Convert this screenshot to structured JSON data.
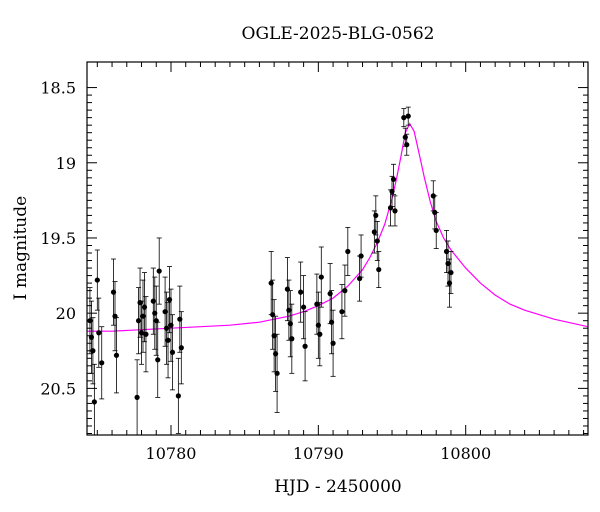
{
  "chart_data": {
    "type": "scatter",
    "title": "OGLE-2025-BLG-0562",
    "xlabel": "HJD - 2450000",
    "ylabel": "I magnitude",
    "xlim": [
      10774.3,
      10808.3
    ],
    "ylim": [
      20.81,
      18.33
    ],
    "y_inverted": true,
    "xticks": [
      "10780",
      "10790",
      "10800"
    ],
    "yticks": [
      "18.5",
      "19",
      "19.5",
      "20",
      "20.5"
    ],
    "xtick_values": [
      10780,
      10790,
      10800
    ],
    "ytick_values": [
      18.5,
      19.0,
      19.5,
      20.0,
      20.5
    ],
    "grid": false,
    "colors": {
      "points": "#000000",
      "model": "#ff00ff",
      "frame": "#000000"
    },
    "model": {
      "name": "",
      "x": [
        10774.3,
        10776,
        10778,
        10780,
        10782,
        10784,
        10786,
        10787,
        10788,
        10789,
        10790,
        10791,
        10792,
        10793,
        10793.5,
        10794,
        10794.5,
        10795,
        10795.3,
        10795.6,
        10795.9,
        10796.2,
        10796.5,
        10796.8,
        10797.2,
        10797.6,
        10798,
        10798.5,
        10799,
        10800,
        10801,
        10802,
        10803,
        10804,
        10806,
        10808.3
      ],
      "y": [
        20.12,
        20.12,
        20.11,
        20.1,
        20.09,
        20.08,
        20.06,
        20.04,
        20.02,
        19.99,
        19.95,
        19.9,
        19.82,
        19.71,
        19.63,
        19.53,
        19.41,
        19.24,
        19.11,
        18.96,
        18.8,
        18.74,
        18.79,
        18.92,
        19.1,
        19.26,
        19.39,
        19.5,
        19.58,
        19.7,
        19.8,
        19.88,
        19.94,
        19.98,
        20.04,
        20.09
      ]
    },
    "series": [
      {
        "name": "",
        "x": [
          10774.5,
          10774.6,
          10774.7,
          10774.8,
          10775.0,
          10775.1,
          10775.3,
          10776.1,
          10776.2,
          10776.3,
          10777.7,
          10777.8,
          10777.9,
          10778.0,
          10778.1,
          10778.2,
          10778.3,
          10778.8,
          10778.9,
          10779.0,
          10779.1,
          10779.2,
          10779.6,
          10779.7,
          10779.8,
          10779.9,
          10780.0,
          10780.1,
          10780.5,
          10780.6,
          10780.7,
          10786.8,
          10786.9,
          10787.0,
          10787.1,
          10787.2,
          10787.9,
          10788.0,
          10788.1,
          10788.2,
          10788.8,
          10789.0,
          10789.1,
          10789.9,
          10790.0,
          10790.1,
          10790.2,
          10790.8,
          10790.9,
          10791.0,
          10791.6,
          10791.8,
          10792.0,
          10792.8,
          10792.9,
          10793.8,
          10793.9,
          10794.0,
          10794.1,
          10794.9,
          10795.0,
          10795.1,
          10795.2,
          10795.8,
          10795.9,
          10796.0,
          10796.1,
          10797.8,
          10797.9,
          10798.0,
          10798.7,
          10798.8,
          10798.9,
          10799.0
        ],
        "y": [
          20.05,
          20.16,
          20.25,
          20.59,
          19.78,
          20.13,
          20.33,
          19.86,
          20.02,
          20.28,
          20.56,
          20.05,
          19.93,
          20.13,
          20.02,
          19.96,
          20.14,
          19.92,
          20.0,
          20.05,
          20.31,
          19.72,
          19.99,
          20.1,
          20.18,
          19.91,
          20.08,
          20.26,
          20.55,
          20.04,
          20.23,
          19.8,
          20.01,
          20.15,
          20.27,
          20.4,
          19.84,
          19.98,
          20.07,
          20.17,
          19.86,
          19.96,
          20.22,
          19.94,
          20.08,
          20.14,
          19.76,
          19.87,
          20.06,
          20.2,
          19.99,
          19.85,
          19.59,
          19.77,
          19.62,
          19.46,
          19.35,
          19.52,
          19.71,
          19.3,
          19.19,
          19.11,
          19.32,
          18.7,
          18.83,
          18.88,
          18.69,
          19.22,
          19.33,
          19.45,
          19.59,
          19.67,
          19.8,
          19.73
        ],
        "yerr": [
          0.22,
          0.24,
          0.22,
          0.25,
          0.2,
          0.23,
          0.24,
          0.22,
          0.23,
          0.25,
          0.25,
          0.22,
          0.23,
          0.21,
          0.24,
          0.23,
          0.25,
          0.22,
          0.24,
          0.23,
          0.25,
          0.22,
          0.23,
          0.24,
          0.25,
          0.22,
          0.24,
          0.25,
          0.25,
          0.22,
          0.24,
          0.21,
          0.23,
          0.24,
          0.25,
          0.26,
          0.21,
          0.2,
          0.22,
          0.23,
          0.2,
          0.21,
          0.23,
          0.2,
          0.22,
          0.21,
          0.2,
          0.2,
          0.21,
          0.22,
          0.18,
          0.17,
          0.16,
          0.15,
          0.14,
          0.14,
          0.13,
          0.13,
          0.12,
          0.12,
          0.1,
          0.1,
          0.1,
          0.06,
          0.06,
          0.07,
          0.06,
          0.1,
          0.11,
          0.12,
          0.14,
          0.15,
          0.16,
          0.14
        ]
      }
    ]
  }
}
